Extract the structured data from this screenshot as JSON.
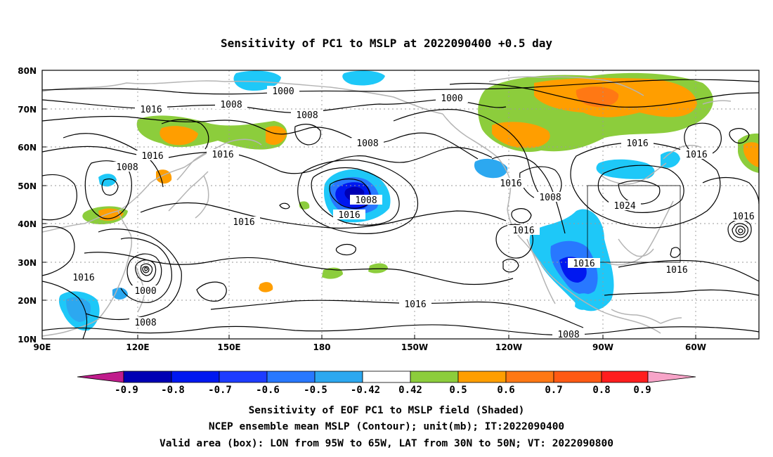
{
  "title": "Sensitivity of PC1 to MSLP at 2022090400 +0.5 day",
  "map": {
    "lat_labels": [
      "80N",
      "70N",
      "60N",
      "50N",
      "40N",
      "30N",
      "20N",
      "10N"
    ],
    "lon_labels": [
      "90E",
      "120E",
      "150E",
      "180",
      "150W",
      "120W",
      "90W",
      "60W"
    ],
    "contour_labels": [
      {
        "text": "1000"
      },
      {
        "text": "1008"
      },
      {
        "text": "1016"
      },
      {
        "text": "1000"
      },
      {
        "text": "1008"
      },
      {
        "text": "1016"
      },
      {
        "text": "1016"
      },
      {
        "text": "1008"
      },
      {
        "text": "1008"
      },
      {
        "text": "1016"
      },
      {
        "text": "1016"
      },
      {
        "text": "1016"
      },
      {
        "text": "1016"
      },
      {
        "text": "1008"
      },
      {
        "text": "1016"
      },
      {
        "text": "1008"
      },
      {
        "text": "1024"
      },
      {
        "text": "1016"
      },
      {
        "text": "1016"
      },
      {
        "text": "1016"
      },
      {
        "text": "1016"
      },
      {
        "text": "1016"
      },
      {
        "text": "1000"
      },
      {
        "text": "1008"
      },
      {
        "text": "1016"
      },
      {
        "text": "1008"
      }
    ],
    "colors": {
      "neg_90": "#0000b4",
      "neg_80": "#0018f0",
      "neg_70": "#1e3cff",
      "neg_60": "#2878ff",
      "neg_50": "#2ca8f0",
      "neg_42": "#1ec8f8",
      "pos_42": "#8ccd3c",
      "pos_50": "#ff9e00",
      "pos_60": "#ff7814",
      "pos_70": "#ff5a14",
      "pos_80": "#ff1e1e",
      "tri_low": "#c01c8c",
      "tri_high": "#f7a4c8",
      "coast": "#b4b4b4",
      "contour": "#000000"
    }
  },
  "colorbar": {
    "labels": [
      "-0.9",
      "-0.8",
      "-0.7",
      "-0.6",
      "-0.5",
      "-0.42",
      "0.42",
      "0.5",
      "0.6",
      "0.7",
      "0.8",
      "0.9"
    ]
  },
  "captions": [
    "Sensitivity of EOF PC1 to MSLP field (Shaded)",
    "NCEP ensemble mean MSLP (Contour); unit(mb); IT:2022090400",
    "Valid area (box): LON from 95W to 65W, LAT from 30N to 50N; VT: 2022090800"
  ]
}
